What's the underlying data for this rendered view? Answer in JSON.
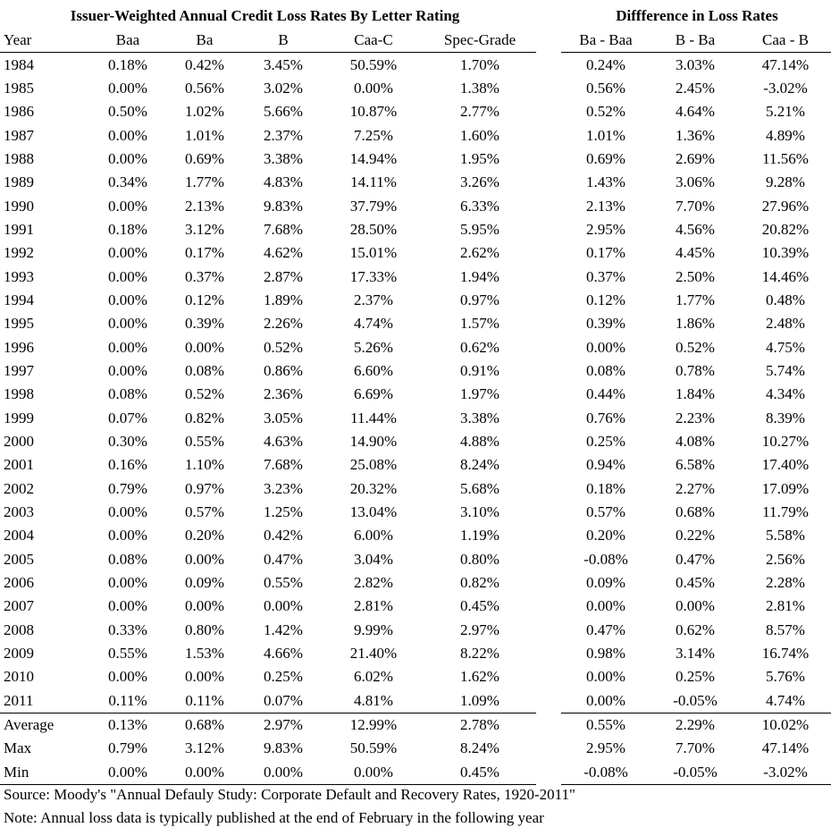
{
  "titles": {
    "left": "Issuer-Weighted Annual Credit Loss Rates By Letter Rating",
    "right": "Diffference in Loss Rates"
  },
  "headers": {
    "left": [
      "Year",
      "Baa",
      "Ba",
      "B",
      "Caa-C",
      "Spec-Grade"
    ],
    "right": [
      "Ba - Baa",
      "B - Ba",
      "Caa - B"
    ]
  },
  "rows": [
    {
      "year": "1984",
      "baa": "0.18%",
      "ba": "0.42%",
      "b": "3.45%",
      "caa": "50.59%",
      "spec": "1.70%",
      "d1": "0.24%",
      "d2": "3.03%",
      "d3": "47.14%"
    },
    {
      "year": "1985",
      "baa": "0.00%",
      "ba": "0.56%",
      "b": "3.02%",
      "caa": "0.00%",
      "spec": "1.38%",
      "d1": "0.56%",
      "d2": "2.45%",
      "d3": "-3.02%"
    },
    {
      "year": "1986",
      "baa": "0.50%",
      "ba": "1.02%",
      "b": "5.66%",
      "caa": "10.87%",
      "spec": "2.77%",
      "d1": "0.52%",
      "d2": "4.64%",
      "d3": "5.21%"
    },
    {
      "year": "1987",
      "baa": "0.00%",
      "ba": "1.01%",
      "b": "2.37%",
      "caa": "7.25%",
      "spec": "1.60%",
      "d1": "1.01%",
      "d2": "1.36%",
      "d3": "4.89%"
    },
    {
      "year": "1988",
      "baa": "0.00%",
      "ba": "0.69%",
      "b": "3.38%",
      "caa": "14.94%",
      "spec": "1.95%",
      "d1": "0.69%",
      "d2": "2.69%",
      "d3": "11.56%"
    },
    {
      "year": "1989",
      "baa": "0.34%",
      "ba": "1.77%",
      "b": "4.83%",
      "caa": "14.11%",
      "spec": "3.26%",
      "d1": "1.43%",
      "d2": "3.06%",
      "d3": "9.28%"
    },
    {
      "year": "1990",
      "baa": "0.00%",
      "ba": "2.13%",
      "b": "9.83%",
      "caa": "37.79%",
      "spec": "6.33%",
      "d1": "2.13%",
      "d2": "7.70%",
      "d3": "27.96%"
    },
    {
      "year": "1991",
      "baa": "0.18%",
      "ba": "3.12%",
      "b": "7.68%",
      "caa": "28.50%",
      "spec": "5.95%",
      "d1": "2.95%",
      "d2": "4.56%",
      "d3": "20.82%"
    },
    {
      "year": "1992",
      "baa": "0.00%",
      "ba": "0.17%",
      "b": "4.62%",
      "caa": "15.01%",
      "spec": "2.62%",
      "d1": "0.17%",
      "d2": "4.45%",
      "d3": "10.39%"
    },
    {
      "year": "1993",
      "baa": "0.00%",
      "ba": "0.37%",
      "b": "2.87%",
      "caa": "17.33%",
      "spec": "1.94%",
      "d1": "0.37%",
      "d2": "2.50%",
      "d3": "14.46%"
    },
    {
      "year": "1994",
      "baa": "0.00%",
      "ba": "0.12%",
      "b": "1.89%",
      "caa": "2.37%",
      "spec": "0.97%",
      "d1": "0.12%",
      "d2": "1.77%",
      "d3": "0.48%"
    },
    {
      "year": "1995",
      "baa": "0.00%",
      "ba": "0.39%",
      "b": "2.26%",
      "caa": "4.74%",
      "spec": "1.57%",
      "d1": "0.39%",
      "d2": "1.86%",
      "d3": "2.48%"
    },
    {
      "year": "1996",
      "baa": "0.00%",
      "ba": "0.00%",
      "b": "0.52%",
      "caa": "5.26%",
      "spec": "0.62%",
      "d1": "0.00%",
      "d2": "0.52%",
      "d3": "4.75%"
    },
    {
      "year": "1997",
      "baa": "0.00%",
      "ba": "0.08%",
      "b": "0.86%",
      "caa": "6.60%",
      "spec": "0.91%",
      "d1": "0.08%",
      "d2": "0.78%",
      "d3": "5.74%"
    },
    {
      "year": "1998",
      "baa": "0.08%",
      "ba": "0.52%",
      "b": "2.36%",
      "caa": "6.69%",
      "spec": "1.97%",
      "d1": "0.44%",
      "d2": "1.84%",
      "d3": "4.34%"
    },
    {
      "year": "1999",
      "baa": "0.07%",
      "ba": "0.82%",
      "b": "3.05%",
      "caa": "11.44%",
      "spec": "3.38%",
      "d1": "0.76%",
      "d2": "2.23%",
      "d3": "8.39%"
    },
    {
      "year": "2000",
      "baa": "0.30%",
      "ba": "0.55%",
      "b": "4.63%",
      "caa": "14.90%",
      "spec": "4.88%",
      "d1": "0.25%",
      "d2": "4.08%",
      "d3": "10.27%"
    },
    {
      "year": "2001",
      "baa": "0.16%",
      "ba": "1.10%",
      "b": "7.68%",
      "caa": "25.08%",
      "spec": "8.24%",
      "d1": "0.94%",
      "d2": "6.58%",
      "d3": "17.40%"
    },
    {
      "year": "2002",
      "baa": "0.79%",
      "ba": "0.97%",
      "b": "3.23%",
      "caa": "20.32%",
      "spec": "5.68%",
      "d1": "0.18%",
      "d2": "2.27%",
      "d3": "17.09%"
    },
    {
      "year": "2003",
      "baa": "0.00%",
      "ba": "0.57%",
      "b": "1.25%",
      "caa": "13.04%",
      "spec": "3.10%",
      "d1": "0.57%",
      "d2": "0.68%",
      "d3": "11.79%"
    },
    {
      "year": "2004",
      "baa": "0.00%",
      "ba": "0.20%",
      "b": "0.42%",
      "caa": "6.00%",
      "spec": "1.19%",
      "d1": "0.20%",
      "d2": "0.22%",
      "d3": "5.58%"
    },
    {
      "year": "2005",
      "baa": "0.08%",
      "ba": "0.00%",
      "b": "0.47%",
      "caa": "3.04%",
      "spec": "0.80%",
      "d1": "-0.08%",
      "d2": "0.47%",
      "d3": "2.56%"
    },
    {
      "year": "2006",
      "baa": "0.00%",
      "ba": "0.09%",
      "b": "0.55%",
      "caa": "2.82%",
      "spec": "0.82%",
      "d1": "0.09%",
      "d2": "0.45%",
      "d3": "2.28%"
    },
    {
      "year": "2007",
      "baa": "0.00%",
      "ba": "0.00%",
      "b": "0.00%",
      "caa": "2.81%",
      "spec": "0.45%",
      "d1": "0.00%",
      "d2": "0.00%",
      "d3": "2.81%"
    },
    {
      "year": "2008",
      "baa": "0.33%",
      "ba": "0.80%",
      "b": "1.42%",
      "caa": "9.99%",
      "spec": "2.97%",
      "d1": "0.47%",
      "d2": "0.62%",
      "d3": "8.57%"
    },
    {
      "year": "2009",
      "baa": "0.55%",
      "ba": "1.53%",
      "b": "4.66%",
      "caa": "21.40%",
      "spec": "8.22%",
      "d1": "0.98%",
      "d2": "3.14%",
      "d3": "16.74%"
    },
    {
      "year": "2010",
      "baa": "0.00%",
      "ba": "0.00%",
      "b": "0.25%",
      "caa": "6.02%",
      "spec": "1.62%",
      "d1": "0.00%",
      "d2": "0.25%",
      "d3": "5.76%"
    },
    {
      "year": "2011",
      "baa": "0.11%",
      "ba": "0.11%",
      "b": "0.07%",
      "caa": "4.81%",
      "spec": "1.09%",
      "d1": "0.00%",
      "d2": "-0.05%",
      "d3": "4.74%"
    }
  ],
  "summary": [
    {
      "year": "Average",
      "baa": "0.13%",
      "ba": "0.68%",
      "b": "2.97%",
      "caa": "12.99%",
      "spec": "2.78%",
      "d1": "0.55%",
      "d2": "2.29%",
      "d3": "10.02%"
    },
    {
      "year": "Max",
      "baa": "0.79%",
      "ba": "3.12%",
      "b": "9.83%",
      "caa": "50.59%",
      "spec": "8.24%",
      "d1": "2.95%",
      "d2": "7.70%",
      "d3": "47.14%"
    },
    {
      "year": "Min",
      "baa": "0.00%",
      "ba": "0.00%",
      "b": "0.00%",
      "caa": "0.00%",
      "spec": "0.45%",
      "d1": "-0.08%",
      "d2": "-0.05%",
      "d3": "-3.02%"
    }
  ],
  "footer": {
    "source": "Source: Moody's \"Annual Defauly Study: Corporate Default and Recovery Rates, 1920-2011\"",
    "note": "Note: Annual loss data is typically published at the end of February in the following year"
  }
}
